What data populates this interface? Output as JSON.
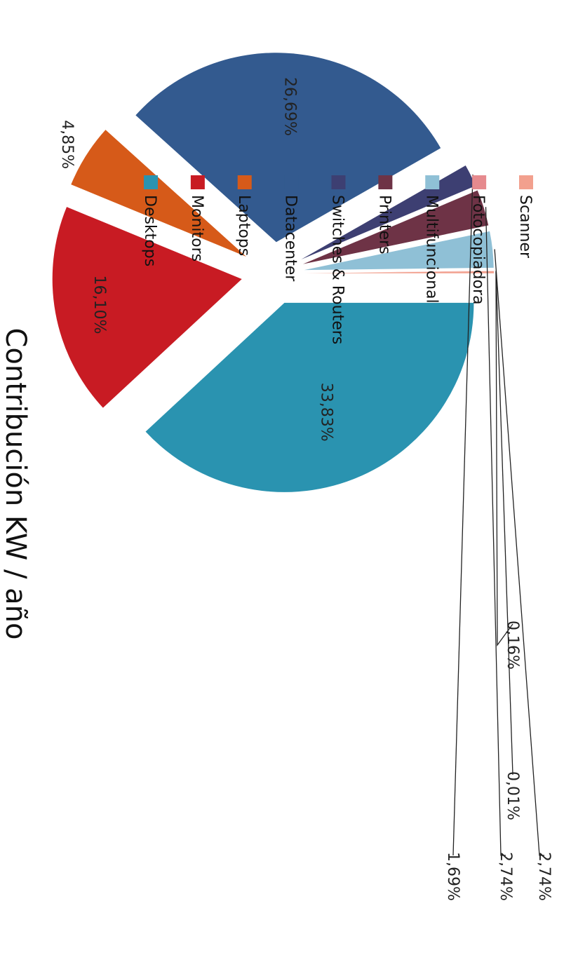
{
  "chart_data": {
    "type": "pie",
    "title": "Contribución KW / año",
    "legend_placement": "right",
    "series": [
      {
        "name": "Desktops",
        "value": 33.83,
        "label": "33,83%",
        "color": "#2a93b0"
      },
      {
        "name": "Monitors",
        "value": 16.1,
        "label": "16,10%",
        "color": "#c81b23"
      },
      {
        "name": "Laptops",
        "value": 4.85,
        "label": "4,85%",
        "color": "#d65a19"
      },
      {
        "name": "Datacenter",
        "value": 26.69,
        "label": "26,69%",
        "color": "#335a8f"
      },
      {
        "name": "Switches & Routers",
        "value": 1.69,
        "label": "1,69%",
        "color": "#3d3f72"
      },
      {
        "name": "Printers",
        "value": 2.74,
        "label": "2,74%",
        "color": "#6e3346"
      },
      {
        "name": "Multifuncional",
        "value": 2.74,
        "label": "2,74%",
        "color": "#8fc0d6"
      },
      {
        "name": "Fotocopiadora",
        "value": 0.01,
        "label": "0,01%",
        "color": "#e68a8e"
      },
      {
        "name": "Scanner",
        "value": 0.16,
        "label": "0,16%",
        "color": "#f2a08e"
      }
    ]
  }
}
